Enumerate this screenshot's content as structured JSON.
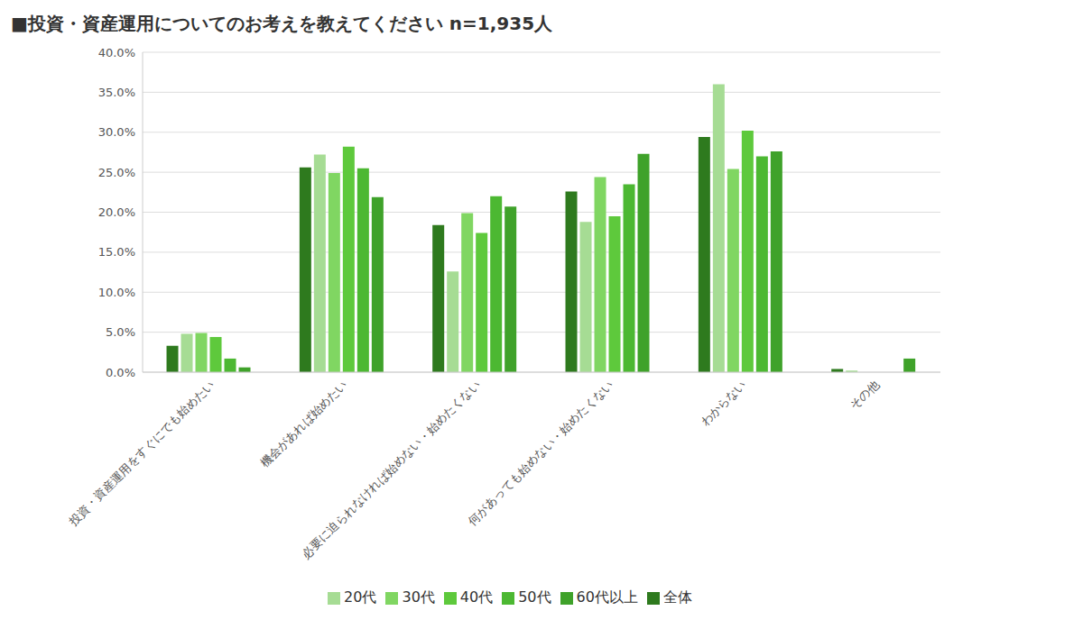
{
  "chart_data": {
    "type": "bar",
    "title": "■投資・資産運用についてのお考えを教えてください n=1,935人",
    "categories": [
      "投資・資産運用をすぐにでも始めたい",
      "機会があれば始めたい",
      "必要に迫られなければ始めない・始めたくない",
      "何があっても始めない・始めたくない",
      "わからない",
      "その他"
    ],
    "series": [
      {
        "name": "全体",
        "color": "#2e7a1e",
        "values": [
          3.3,
          25.6,
          18.4,
          22.6,
          29.4,
          0.4
        ]
      },
      {
        "name": "20代",
        "color": "#a6dc94",
        "values": [
          4.8,
          27.2,
          12.6,
          18.8,
          36.0,
          0.2
        ]
      },
      {
        "name": "30代",
        "color": "#80d662",
        "values": [
          4.9,
          24.9,
          19.9,
          24.4,
          25.4,
          0
        ]
      },
      {
        "name": "40代",
        "color": "#5ec93c",
        "values": [
          4.4,
          28.2,
          17.4,
          19.5,
          30.2,
          0
        ]
      },
      {
        "name": "50代",
        "color": "#4cb832",
        "values": [
          1.7,
          25.5,
          22.0,
          23.5,
          27.0,
          0
        ]
      },
      {
        "name": "60代以上",
        "color": "#3fa22a",
        "values": [
          0.6,
          21.9,
          20.7,
          27.3,
          27.6,
          1.7
        ]
      }
    ],
    "ylim": [
      0,
      40
    ],
    "yticks": [
      {
        "value": 0,
        "label": "0.0%"
      },
      {
        "value": 5,
        "label": "5.0%"
      },
      {
        "value": 10,
        "label": "10.0%"
      },
      {
        "value": 15,
        "label": "15.0%"
      },
      {
        "value": 20,
        "label": "20.0%"
      },
      {
        "value": 25,
        "label": "25.0%"
      },
      {
        "value": 30,
        "label": "30.0%"
      },
      {
        "value": 35,
        "label": "35.0%"
      },
      {
        "value": 40,
        "label": "40.0%"
      }
    ],
    "grid": true,
    "legend": "bottom"
  }
}
